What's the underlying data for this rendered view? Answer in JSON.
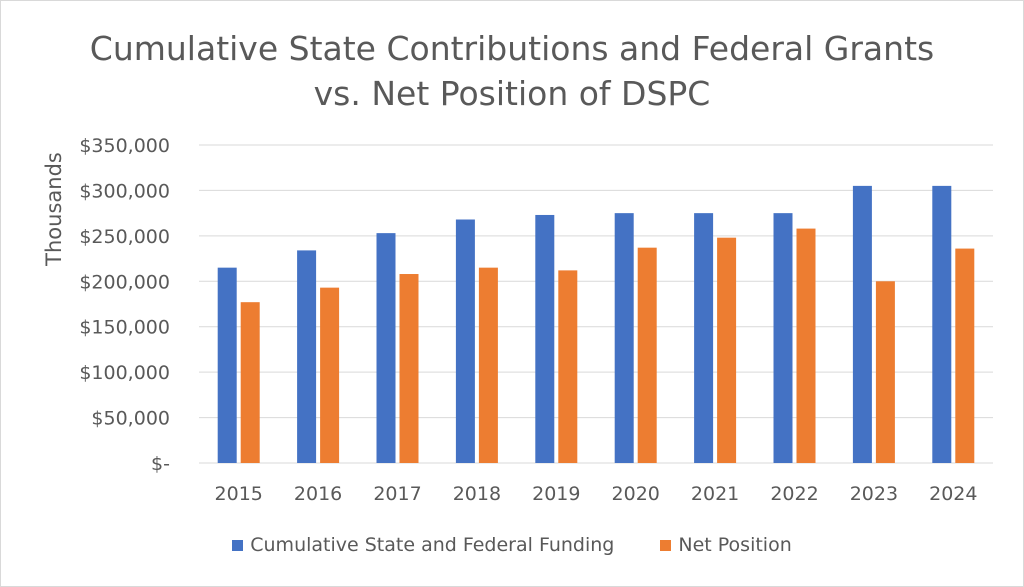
{
  "chart_data": {
    "type": "bar",
    "title_line1": "Cumulative State Contributions and Federal Grants",
    "title_line2": "vs. Net Position of DSPC",
    "ylabel": "Thousands",
    "xlabel": "",
    "categories": [
      "2015",
      "2016",
      "2017",
      "2018",
      "2019",
      "2020",
      "2021",
      "2022",
      "2023",
      "2024"
    ],
    "series": [
      {
        "name": "Cumulative State and Federal Funding",
        "color": "#4472c4",
        "values": [
          215000,
          234000,
          253000,
          268000,
          273000,
          275000,
          275000,
          275000,
          305000,
          305000
        ]
      },
      {
        "name": "Net Position",
        "color": "#ed7d31",
        "values": [
          177000,
          193000,
          208000,
          215000,
          212000,
          237000,
          248000,
          258000,
          200000,
          236000
        ]
      }
    ],
    "ylim": [
      0,
      350000
    ],
    "yticks": [
      0,
      50000,
      100000,
      150000,
      200000,
      250000,
      300000,
      350000
    ],
    "ytick_labels": [
      "$-",
      "$50,000",
      "$100,000",
      "$150,000",
      "$200,000",
      "$250,000",
      "$300,000",
      "$350,000"
    ],
    "grid": true,
    "legend_position": "bottom"
  }
}
